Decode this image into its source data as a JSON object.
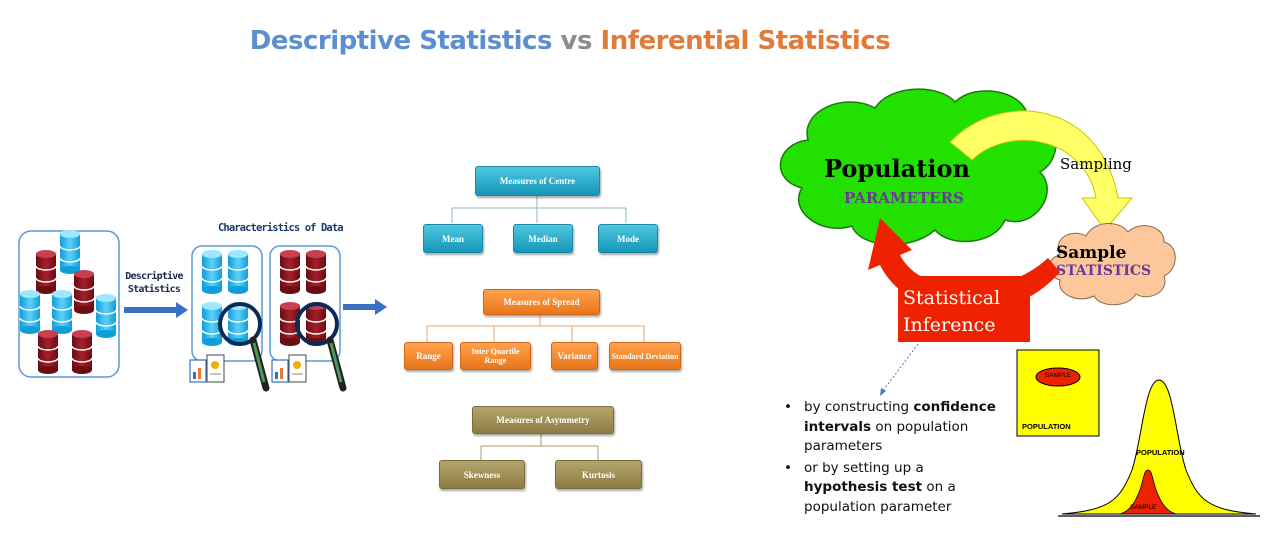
{
  "title": {
    "part1": "Descriptive Statistics",
    "part2": "vs",
    "part3": "Inferential Statistics"
  },
  "left": {
    "arrow_label_line1": "Descriptive",
    "arrow_label_line2": "Statistics",
    "characteristics_title": "Characteristics of Data"
  },
  "tree": {
    "centre": {
      "root": "Measures of Centre",
      "children": [
        "Mean",
        "Median",
        "Mode"
      ]
    },
    "spread": {
      "root": "Measures of Spread",
      "children": [
        "Range",
        "Inter Quartile Range",
        "Variance",
        "Standard Deviation"
      ]
    },
    "asymmetry": {
      "root": "Measures of Asymmetry",
      "children": [
        "Skewness",
        "Kurtosis"
      ]
    }
  },
  "inference": {
    "population": "Population",
    "parameters": "PARAMETERS",
    "sampling": "Sampling",
    "sample": "Sample",
    "statistics": "STATISTICS",
    "statistical": "Statistical",
    "inference": "Inference",
    "bullet1_a": "by constructing ",
    "bullet1_b": "confidence intervals",
    "bullet1_c": " on population parameters",
    "bullet2_a": "or by setting up a ",
    "bullet2_b": "hypothesis test",
    "bullet2_c": " on a population parameter",
    "box_sample": "SAMPLE",
    "box_population": "POPULATION",
    "curve_population": "POPULATION",
    "curve_sample": "SAMPLE"
  },
  "colors": {
    "teal": "#1596b8",
    "orange": "#e8761a",
    "olive": "#8c7c44",
    "cloud_green": "#22e000",
    "cloud_peach": "#fcc79a",
    "sampling_yellow": "#ffff66",
    "inference_red": "#ee2200",
    "curve_yellow": "#ffff00"
  }
}
